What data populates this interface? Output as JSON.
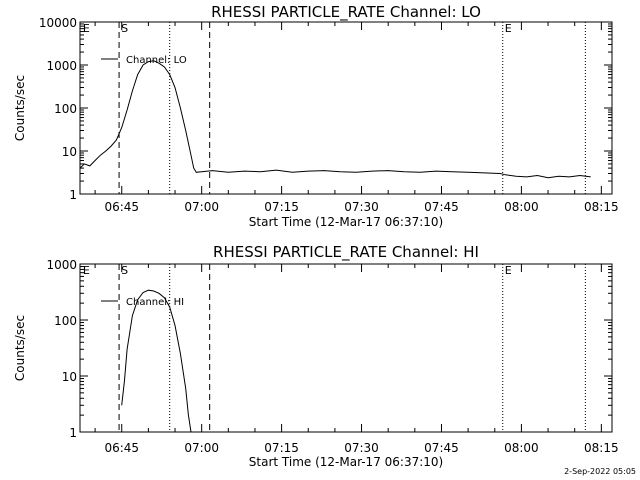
{
  "footer": {
    "timestamp": "2-Sep-2022 05:05"
  },
  "chart_data": [
    {
      "type": "line",
      "title": "RHESSI PARTICLE_RATE Channel: LO",
      "xlabel": "Start Time (12-Mar-17 06:37:10)",
      "ylabel": "Counts/sec",
      "yscale": "log",
      "ylim": [
        1,
        10000
      ],
      "y_ticks": [
        {
          "value": 1,
          "label": "1"
        },
        {
          "value": 10,
          "label": "10"
        },
        {
          "value": 100,
          "label": "100"
        },
        {
          "value": 1000,
          "label": "1000"
        },
        {
          "value": 10000,
          "label": "10000"
        }
      ],
      "xlim": [
        "06:37:10",
        "08:17:00"
      ],
      "x_ticks": [
        "06:45",
        "07:00",
        "07:15",
        "07:30",
        "07:45",
        "08:00",
        "08:15"
      ],
      "legend": {
        "label": "Channel: LO",
        "placement": "top-left"
      },
      "markers": [
        {
          "label": "E",
          "time": "06:37:20",
          "style": "none"
        },
        {
          "label": "S",
          "time": "06:44:30",
          "style": "dashed"
        },
        {
          "label": "",
          "time": "06:54:00",
          "style": "dotted"
        },
        {
          "label": "",
          "time": "07:01:30",
          "style": "dashed"
        },
        {
          "label": "E",
          "time": "07:56:30",
          "style": "dotted"
        },
        {
          "label": "",
          "time": "08:12:00",
          "style": "dotted"
        }
      ],
      "series": [
        {
          "x": [
            "06:37:10",
            "06:38:00",
            "06:39:00",
            "06:40:00",
            "06:41:00",
            "06:42:00",
            "06:43:00",
            "06:44:00",
            "06:45:00",
            "06:46:00",
            "06:47:00",
            "06:48:00",
            "06:49:00",
            "06:50:00",
            "06:51:00",
            "06:52:00",
            "06:53:00",
            "06:54:00",
            "06:55:00",
            "06:56:00",
            "06:57:00",
            "06:58:00",
            "06:58:30",
            "06:59:00",
            "07:00:00",
            "07:02:00",
            "07:05:00",
            "07:08:00",
            "07:11:00",
            "07:14:00",
            "07:17:00",
            "07:20:00",
            "07:23:00",
            "07:26:00",
            "07:29:00",
            "07:32:00",
            "07:35:00",
            "07:38:00",
            "07:41:00",
            "07:44:00",
            "07:47:00",
            "07:50:00",
            "07:53:00",
            "07:56:00",
            "07:57:00",
            "07:59:00",
            "08:01:00",
            "08:03:00",
            "08:05:00",
            "08:07:00",
            "08:09:00",
            "08:11:00",
            "08:13:00"
          ],
          "values": [
            4,
            5,
            4.5,
            6,
            8,
            10,
            13,
            18,
            35,
            90,
            250,
            600,
            1000,
            1200,
            1250,
            1100,
            900,
            600,
            300,
            100,
            30,
            8,
            4,
            3.2,
            3.3,
            3.5,
            3.2,
            3.4,
            3.3,
            3.6,
            3.2,
            3.4,
            3.5,
            3.3,
            3.2,
            3.4,
            3.5,
            3.3,
            3.2,
            3.4,
            3.3,
            3.2,
            3.1,
            3.0,
            2.8,
            2.6,
            2.5,
            2.7,
            2.4,
            2.6,
            2.5,
            2.7,
            2.5
          ]
        }
      ]
    },
    {
      "type": "line",
      "title": "RHESSI PARTICLE_RATE Channel: HI",
      "xlabel": "Start Time (12-Mar-17 06:37:10)",
      "ylabel": "Counts/sec",
      "yscale": "log",
      "ylim": [
        1,
        1000
      ],
      "y_ticks": [
        {
          "value": 1,
          "label": "1"
        },
        {
          "value": 10,
          "label": "10"
        },
        {
          "value": 100,
          "label": "100"
        },
        {
          "value": 1000,
          "label": "1000"
        }
      ],
      "xlim": [
        "06:37:10",
        "08:17:00"
      ],
      "x_ticks": [
        "06:45",
        "07:00",
        "07:15",
        "07:30",
        "07:45",
        "08:00",
        "08:15"
      ],
      "legend": {
        "label": "Channel: HI",
        "placement": "top-left"
      },
      "markers": [
        {
          "label": "E",
          "time": "06:37:20",
          "style": "none"
        },
        {
          "label": "S",
          "time": "06:44:30",
          "style": "dashed"
        },
        {
          "label": "",
          "time": "06:54:00",
          "style": "dotted"
        },
        {
          "label": "",
          "time": "07:01:30",
          "style": "dashed"
        },
        {
          "label": "E",
          "time": "07:56:30",
          "style": "dotted"
        },
        {
          "label": "",
          "time": "08:12:00",
          "style": "dotted"
        }
      ],
      "series": [
        {
          "x": [
            "06:45:00",
            "06:45:30",
            "06:46:00",
            "06:47:00",
            "06:48:00",
            "06:49:00",
            "06:50:00",
            "06:51:00",
            "06:52:00",
            "06:53:00",
            "06:54:00",
            "06:55:00",
            "06:56:00",
            "06:57:00",
            "06:57:30",
            "06:58:00"
          ],
          "values": [
            3,
            8,
            30,
            120,
            230,
            310,
            340,
            330,
            300,
            250,
            170,
            80,
            25,
            6,
            2,
            1
          ]
        }
      ]
    }
  ]
}
